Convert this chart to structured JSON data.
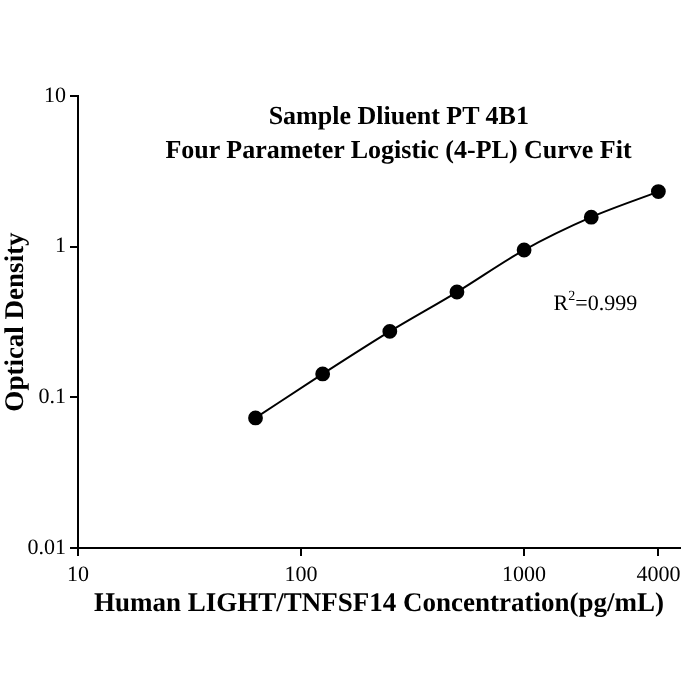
{
  "chart_data": {
    "type": "line",
    "title": "Sample Dliuent PT 4B1",
    "subtitle": "Four Parameter Logistic (4-PL) Curve Fit",
    "xlabel": "Human LIGHT/TNFSF14 Concentration(pg/mL)",
    "ylabel": "Optical Density",
    "x": [
      62.5,
      125,
      250,
      500,
      1000,
      2000,
      4000
    ],
    "series": [
      {
        "color": "#000000",
        "values": [
          0.073,
          0.143,
          0.274,
          0.5,
          0.95,
          1.57,
          2.32
        ]
      }
    ],
    "log": "xy",
    "xlim": [
      10,
      5000
    ],
    "xticks": [
      10,
      100,
      1000,
      4000
    ],
    "ylim": [
      0.01,
      10
    ],
    "yticks": [
      0.01,
      0.1,
      1,
      10
    ],
    "grid": false,
    "legend": false,
    "marker": "circle",
    "line_style": "solid",
    "annotations": [
      "R$^{2}$=0.999"
    ]
  }
}
